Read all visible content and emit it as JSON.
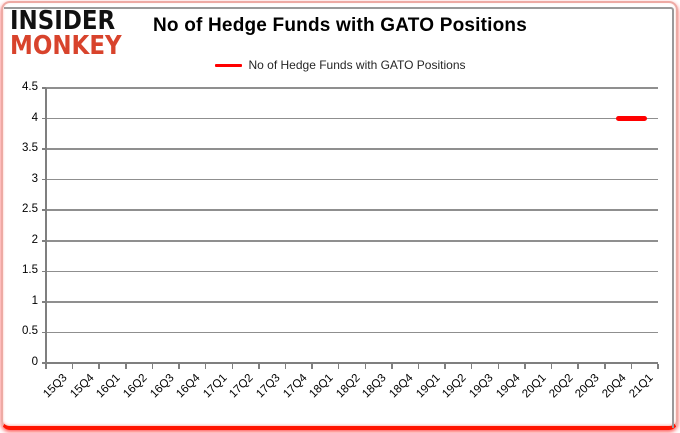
{
  "logo": {
    "line1": "INSIDER",
    "line2": "MONKEY",
    "line2_color": "#d8432c"
  },
  "header": {
    "title": "No of Hedge Funds with GATO Positions"
  },
  "legend": {
    "label": "No of Hedge Funds with GATO Positions",
    "line_color": "#ff0000"
  },
  "colors": {
    "series_red": "#ff0000",
    "grid_gray": "#8f8f8f",
    "frame_pink": "#eeaaa4",
    "frame_red": "#ff1400",
    "chart_border_gray": "#9a9a9a"
  },
  "chart_data": {
    "type": "line",
    "title": "No of Hedge Funds with GATO Positions",
    "categories": [
      "15Q3",
      "15Q4",
      "16Q1",
      "16Q2",
      "16Q3",
      "16Q4",
      "17Q1",
      "17Q2",
      "17Q3",
      "17Q4",
      "18Q1",
      "18Q2",
      "18Q3",
      "18Q4",
      "19Q1",
      "19Q2",
      "19Q3",
      "19Q4",
      "20Q1",
      "20Q2",
      "20Q3",
      "20Q4",
      "21Q1"
    ],
    "series": [
      {
        "name": "No of Hedge Funds with GATO Positions",
        "color": "#ff0000",
        "values": [
          null,
          null,
          null,
          null,
          null,
          null,
          null,
          null,
          null,
          null,
          null,
          null,
          null,
          null,
          null,
          null,
          null,
          null,
          null,
          null,
          null,
          4,
          4
        ]
      }
    ],
    "ylim": [
      0,
      4.5
    ],
    "ytick_step": 0.5,
    "ytick_labels": [
      "0",
      "0.5",
      "1",
      "1.5",
      "2",
      "2.5",
      "3",
      "3.5",
      "4",
      "4.5"
    ],
    "grid": "horizontal-only",
    "legend_position": "top-center"
  }
}
